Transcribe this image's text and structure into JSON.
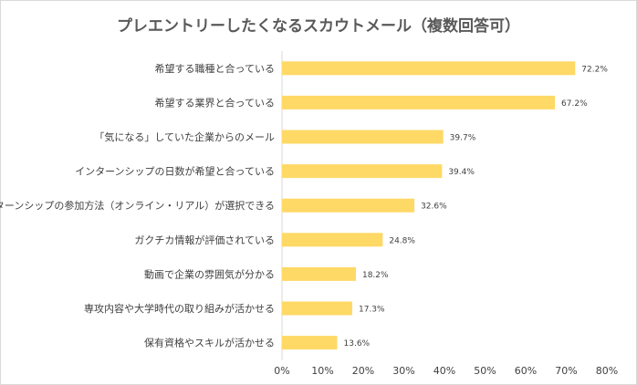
{
  "chart_data": {
    "type": "bar",
    "orientation": "horizontal",
    "title": "プレエントリーしたくなるスカウトメール（複数回答可）",
    "categories": [
      "希望する職種と合っている",
      "希望する業界と合っている",
      "「気になる」していた企業からのメール",
      "インターンシップの日数が希望と合っている",
      "インターンシップの参加方法（オンライン・リアル）が選択できる",
      "ガクチカ情報が評価されている",
      "動画で企業の雰囲気が分かる",
      "専攻内容や大学時代の取り組みが活かせる",
      "保有資格やスキルが活かせる"
    ],
    "values": [
      72.2,
      67.2,
      39.7,
      39.4,
      32.6,
      24.8,
      18.2,
      17.3,
      13.6
    ],
    "value_labels": [
      "72.2%",
      "67.2%",
      "39.7%",
      "39.4%",
      "32.6%",
      "24.8%",
      "18.2%",
      "17.3%",
      "13.6%"
    ],
    "x_ticks": [
      "0%",
      "10%",
      "20%",
      "30%",
      "40%",
      "50%",
      "60%",
      "70%",
      "80%"
    ],
    "xlim": [
      0,
      80
    ],
    "grid": false,
    "bar_color": "#FFD966"
  }
}
